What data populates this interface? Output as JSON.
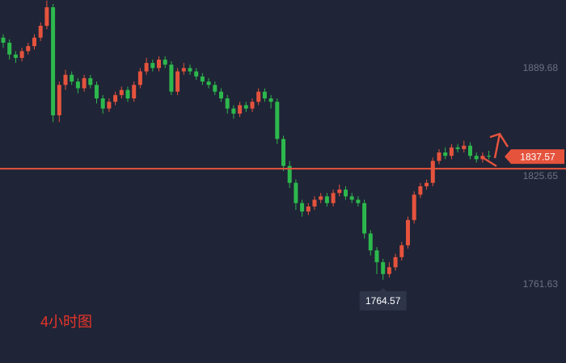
{
  "chart_data": {
    "type": "candlestick",
    "label": "4小时图",
    "ylim": [
      1715.3,
      1930.3
    ],
    "yticks": [
      1761.63,
      1825.65,
      1889.68
    ],
    "up_color": "#e5533d",
    "down_color": "#2db84d",
    "last_price": 1837.57,
    "hline": 1830.4,
    "low_label": 1764.57,
    "ohlc": [
      [
        1908,
        1910,
        1902,
        1905
      ],
      [
        1905,
        1907,
        1895,
        1898
      ],
      [
        1898,
        1900,
        1893,
        1896
      ],
      [
        1896,
        1902,
        1894,
        1900
      ],
      [
        1900,
        1905,
        1898,
        1903
      ],
      [
        1903,
        1910,
        1901,
        1908
      ],
      [
        1908,
        1917,
        1906,
        1915
      ],
      [
        1915,
        1930,
        1913,
        1926
      ],
      [
        1926,
        1928,
        1858,
        1862
      ],
      [
        1862,
        1882,
        1858,
        1880
      ],
      [
        1880,
        1889,
        1877,
        1886
      ],
      [
        1886,
        1888,
        1880,
        1882
      ],
      [
        1882,
        1884,
        1875,
        1878
      ],
      [
        1878,
        1886,
        1876,
        1884
      ],
      [
        1884,
        1886,
        1878,
        1880
      ],
      [
        1880,
        1882,
        1869,
        1872
      ],
      [
        1872,
        1874,
        1863,
        1866
      ],
      [
        1866,
        1872,
        1864,
        1870
      ],
      [
        1870,
        1876,
        1868,
        1874
      ],
      [
        1874,
        1879,
        1872,
        1877
      ],
      [
        1877,
        1879,
        1870,
        1872
      ],
      [
        1872,
        1882,
        1870,
        1880
      ],
      [
        1880,
        1890,
        1878,
        1888
      ],
      [
        1888,
        1896,
        1886,
        1893
      ],
      [
        1893,
        1895,
        1888,
        1890
      ],
      [
        1890,
        1897,
        1888,
        1895
      ],
      [
        1895,
        1897,
        1890,
        1892
      ],
      [
        1892,
        1894,
        1874,
        1876
      ],
      [
        1876,
        1890,
        1874,
        1888
      ],
      [
        1888,
        1893,
        1886,
        1890
      ],
      [
        1890,
        1892,
        1886,
        1888
      ],
      [
        1888,
        1890,
        1883,
        1885
      ],
      [
        1885,
        1887,
        1880,
        1882
      ],
      [
        1882,
        1884,
        1878,
        1880
      ],
      [
        1880,
        1882,
        1874,
        1876
      ],
      [
        1876,
        1878,
        1870,
        1872
      ],
      [
        1872,
        1874,
        1863,
        1866
      ],
      [
        1866,
        1868,
        1860,
        1863
      ],
      [
        1863,
        1870,
        1861,
        1868
      ],
      [
        1868,
        1870,
        1864,
        1866
      ],
      [
        1866,
        1872,
        1864,
        1870
      ],
      [
        1870,
        1878,
        1868,
        1876
      ],
      [
        1876,
        1878,
        1870,
        1872
      ],
      [
        1872,
        1874,
        1866,
        1870
      ],
      [
        1870,
        1872,
        1845,
        1848
      ],
      [
        1848,
        1850,
        1829,
        1832
      ],
      [
        1832,
        1835,
        1819,
        1822
      ],
      [
        1822,
        1824,
        1806,
        1810
      ],
      [
        1810,
        1812,
        1802,
        1805
      ],
      [
        1805,
        1810,
        1803,
        1808
      ],
      [
        1808,
        1814,
        1806,
        1812
      ],
      [
        1812,
        1816,
        1810,
        1814
      ],
      [
        1814,
        1816,
        1808,
        1810
      ],
      [
        1810,
        1818,
        1808,
        1816
      ],
      [
        1816,
        1821,
        1814,
        1818
      ],
      [
        1818,
        1820,
        1812,
        1814
      ],
      [
        1814,
        1816,
        1810,
        1812
      ],
      [
        1812,
        1814,
        1808,
        1810
      ],
      [
        1810,
        1812,
        1789,
        1792
      ],
      [
        1792,
        1794,
        1779,
        1782
      ],
      [
        1782,
        1784,
        1768,
        1775
      ],
      [
        1775,
        1777,
        1764.57,
        1768
      ],
      [
        1768,
        1775,
        1766,
        1772
      ],
      [
        1772,
        1780,
        1770,
        1778
      ],
      [
        1778,
        1787,
        1776,
        1785
      ],
      [
        1785,
        1802,
        1783,
        1800
      ],
      [
        1800,
        1817,
        1798,
        1815
      ],
      [
        1815,
        1822,
        1813,
        1820
      ],
      [
        1820,
        1824,
        1818,
        1822
      ],
      [
        1822,
        1837,
        1820,
        1835
      ],
      [
        1835,
        1842,
        1833,
        1840
      ],
      [
        1840,
        1843,
        1836,
        1838
      ],
      [
        1838,
        1845,
        1836,
        1843
      ],
      [
        1843,
        1845,
        1840,
        1842
      ],
      [
        1842,
        1847,
        1840,
        1844
      ],
      [
        1844,
        1846,
        1836,
        1838
      ],
      [
        1838,
        1840,
        1834,
        1836
      ],
      [
        1836,
        1840,
        1834,
        1838
      ],
      [
        1838,
        1841,
        1836,
        1837.57
      ]
    ]
  }
}
